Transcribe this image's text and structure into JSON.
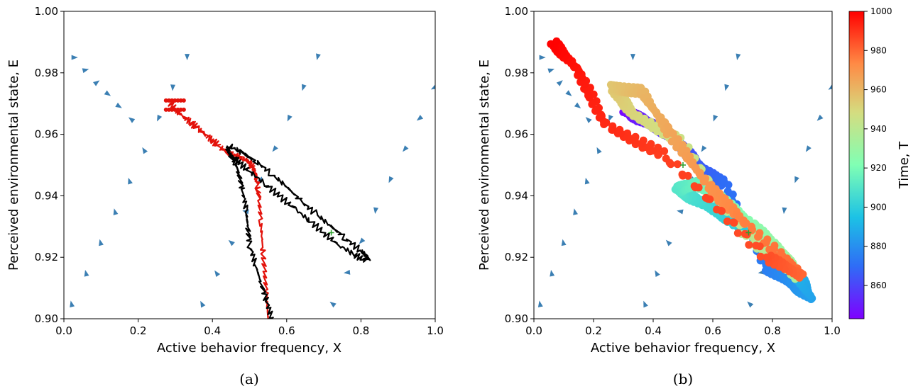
{
  "figure": {
    "caption_a": "(a)",
    "caption_b": "(b)"
  },
  "chart_data": [
    {
      "type": "line",
      "subtype": "streamplot-with-trajectories",
      "panel": "(a)",
      "title": "",
      "xlabel": "Active behavior frequency, X",
      "ylabel": "Perceived environmental state, E",
      "xlim": [
        0.0,
        1.0
      ],
      "ylim": [
        0.9,
        1.0
      ],
      "xticks": [
        "0.0",
        "0.2",
        "0.4",
        "0.6",
        "0.8",
        "1.0"
      ],
      "yticks": [
        "0.90",
        "0.92",
        "0.94",
        "0.96",
        "0.98",
        "1.00"
      ],
      "grid": false,
      "stream_color": "#3b7fb3",
      "series": [
        {
          "color": "#e3120b",
          "x": [
            0.55,
            0.545,
            0.54,
            0.535,
            0.53,
            0.525,
            0.52,
            0.515,
            0.51,
            0.505,
            0.5,
            0.48,
            0.46,
            0.44,
            0.42,
            0.4,
            0.38,
            0.36,
            0.34,
            0.32,
            0.3,
            0.28
          ],
          "y": [
            0.9,
            0.908,
            0.916,
            0.924,
            0.932,
            0.94,
            0.944,
            0.947,
            0.949,
            0.95,
            0.951,
            0.952,
            0.953,
            0.954,
            0.956,
            0.958,
            0.96,
            0.962,
            0.964,
            0.966,
            0.968,
            0.971
          ]
        },
        {
          "color": "#000000",
          "x": [
            0.56,
            0.545,
            0.53,
            0.515,
            0.5,
            0.495,
            0.49,
            0.48,
            0.47,
            0.46,
            0.45,
            0.44,
            0.45,
            0.48,
            0.52,
            0.56,
            0.6,
            0.64,
            0.68,
            0.72,
            0.76,
            0.8,
            0.82,
            0.81,
            0.78,
            0.74,
            0.7,
            0.66,
            0.62,
            0.58,
            0.54,
            0.5,
            0.47,
            0.45,
            0.44
          ],
          "y": [
            0.9,
            0.906,
            0.912,
            0.918,
            0.924,
            0.93,
            0.936,
            0.942,
            0.948,
            0.951,
            0.953,
            0.955,
            0.956,
            0.954,
            0.951,
            0.947,
            0.943,
            0.938,
            0.934,
            0.93,
            0.926,
            0.922,
            0.92,
            0.919,
            0.921,
            0.924,
            0.928,
            0.932,
            0.936,
            0.94,
            0.944,
            0.948,
            0.951,
            0.953,
            0.955
          ]
        }
      ],
      "markers": [
        {
          "color": "#2ca02c",
          "x": 0.72,
          "y": 0.928
        }
      ]
    },
    {
      "type": "scatter",
      "subtype": "streamplot-with-colored-trajectory",
      "panel": "(b)",
      "title": "",
      "xlabel": "Active behavior frequency, X",
      "ylabel": "Perceived environmental state, E",
      "xlim": [
        0.0,
        1.0
      ],
      "ylim": [
        0.9,
        1.0
      ],
      "xticks": [
        "0.0",
        "0.2",
        "0.4",
        "0.6",
        "0.8",
        "1.0"
      ],
      "yticks": [
        "0.90",
        "0.92",
        "0.94",
        "0.96",
        "0.98",
        "1.00"
      ],
      "grid": false,
      "stream_color": "#3b7fb3",
      "colorbar": {
        "label": "Time, T",
        "colormap": "rainbow",
        "range": [
          843,
          1000
        ],
        "ticks": [
          "860",
          "880",
          "900",
          "920",
          "940",
          "960",
          "980",
          "1000"
        ]
      },
      "points": [
        {
          "x": 0.3,
          "y": 0.968,
          "t": 845
        },
        {
          "x": 0.35,
          "y": 0.965,
          "t": 850
        },
        {
          "x": 0.42,
          "y": 0.962,
          "t": 855
        },
        {
          "x": 0.48,
          "y": 0.958,
          "t": 860
        },
        {
          "x": 0.55,
          "y": 0.95,
          "t": 865
        },
        {
          "x": 0.64,
          "y": 0.944,
          "t": 870
        },
        {
          "x": 0.78,
          "y": 0.917,
          "t": 875
        },
        {
          "x": 0.86,
          "y": 0.912,
          "t": 880
        },
        {
          "x": 0.93,
          "y": 0.907,
          "t": 885
        },
        {
          "x": 0.88,
          "y": 0.915,
          "t": 890
        },
        {
          "x": 0.78,
          "y": 0.924,
          "t": 895
        },
        {
          "x": 0.66,
          "y": 0.932,
          "t": 900
        },
        {
          "x": 0.56,
          "y": 0.938,
          "t": 905
        },
        {
          "x": 0.48,
          "y": 0.942,
          "t": 910
        },
        {
          "x": 0.54,
          "y": 0.944,
          "t": 915
        },
        {
          "x": 0.62,
          "y": 0.94,
          "t": 920
        },
        {
          "x": 0.74,
          "y": 0.93,
          "t": 925
        },
        {
          "x": 0.84,
          "y": 0.921,
          "t": 930
        },
        {
          "x": 0.88,
          "y": 0.914,
          "t": 935
        },
        {
          "x": 0.72,
          "y": 0.926,
          "t": 940
        },
        {
          "x": 0.5,
          "y": 0.957,
          "t": 945
        },
        {
          "x": 0.34,
          "y": 0.966,
          "t": 950
        },
        {
          "x": 0.26,
          "y": 0.975,
          "t": 955
        },
        {
          "x": 0.36,
          "y": 0.974,
          "t": 960
        },
        {
          "x": 0.46,
          "y": 0.96,
          "t": 965
        },
        {
          "x": 0.58,
          "y": 0.944,
          "t": 970
        },
        {
          "x": 0.7,
          "y": 0.932,
          "t": 975
        },
        {
          "x": 0.9,
          "y": 0.914,
          "t": 980
        },
        {
          "x": 0.78,
          "y": 0.92,
          "t": 985
        },
        {
          "x": 0.44,
          "y": 0.953,
          "t": 988
        },
        {
          "x": 0.24,
          "y": 0.963,
          "t": 992
        },
        {
          "x": 0.14,
          "y": 0.982,
          "t": 996
        },
        {
          "x": 0.06,
          "y": 0.99,
          "t": 1000
        }
      ],
      "markers": [
        {
          "color": "#2ca02c",
          "x": 0.5,
          "y": 0.95
        },
        {
          "color": "#2ca02c",
          "x": 0.72,
          "y": 0.928
        }
      ]
    }
  ]
}
